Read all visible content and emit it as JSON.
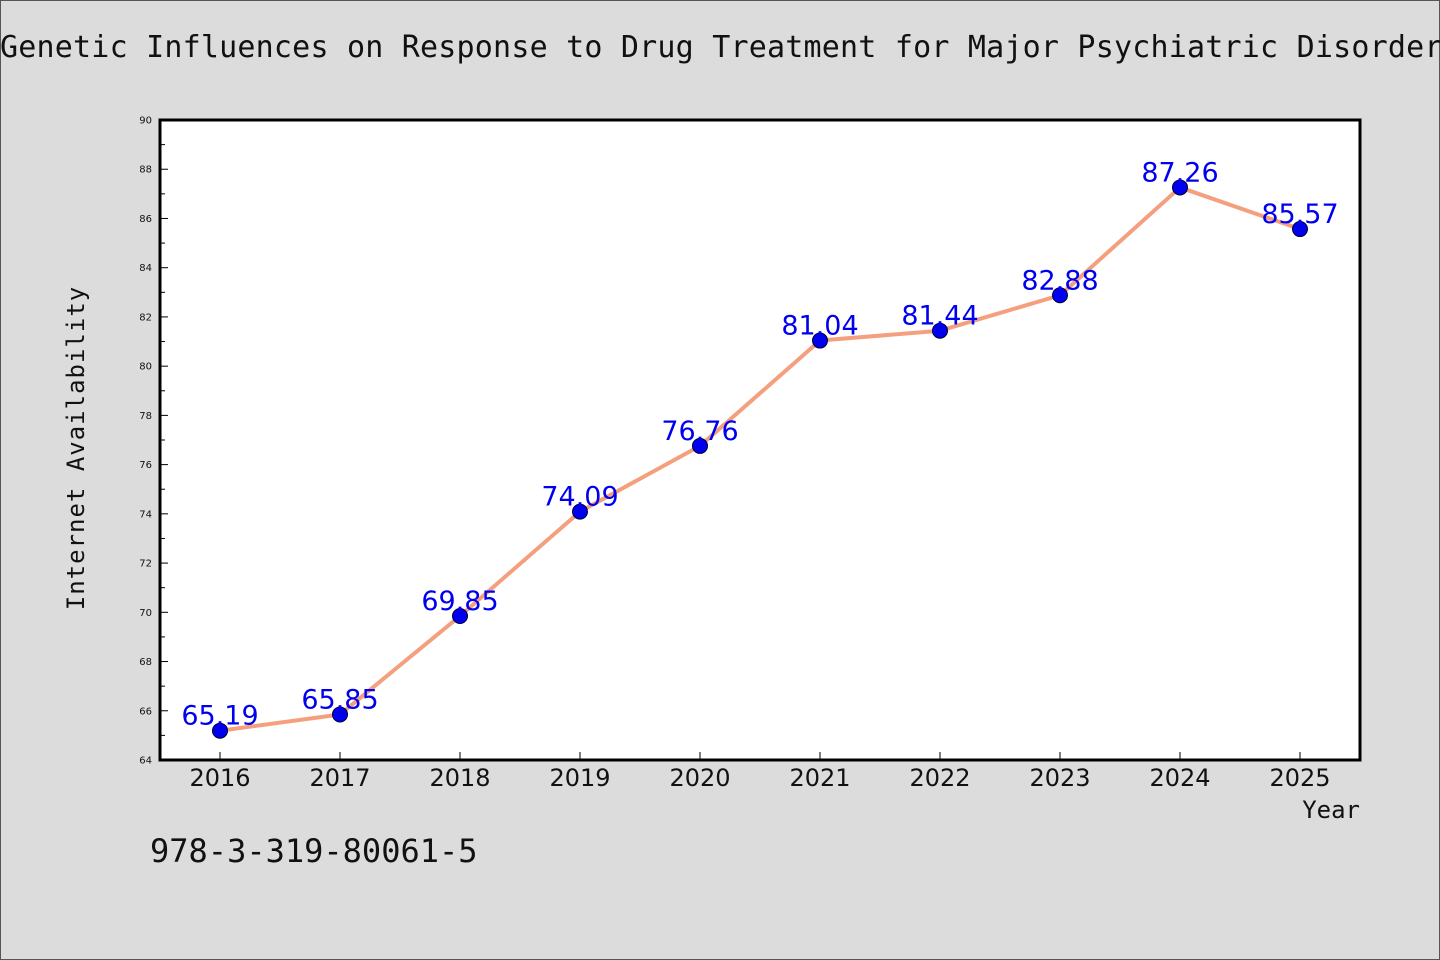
{
  "chart_data": {
    "type": "line",
    "title": "Genetic Influences on Response to Drug Treatment for Major Psychiatric Disorders",
    "xlabel": "Year",
    "ylabel": "Internet Availability",
    "categories": [
      "2016",
      "2017",
      "2018",
      "2019",
      "2020",
      "2021",
      "2022",
      "2023",
      "2024",
      "2025"
    ],
    "values": [
      65.19,
      65.85,
      69.85,
      74.09,
      76.76,
      81.04,
      81.44,
      82.88,
      87.26,
      85.57
    ],
    "data_labels": [
      "65.19",
      "65.85",
      "69.85",
      "74.09",
      "76.76",
      "81.04",
      "81.44",
      "82.88",
      "87.26",
      "85.57"
    ],
    "ylim": [
      64,
      90
    ],
    "yticks": [
      "64",
      "66",
      "68",
      "70",
      "72",
      "74",
      "76",
      "78",
      "80",
      "82",
      "84",
      "86",
      "88",
      "90"
    ],
    "grid": false,
    "colors": {
      "line": "#f4a07f",
      "marker": "#0000ee",
      "label": "#0000ee"
    }
  },
  "footer": {
    "isbn": "978-3-319-80061-5"
  }
}
